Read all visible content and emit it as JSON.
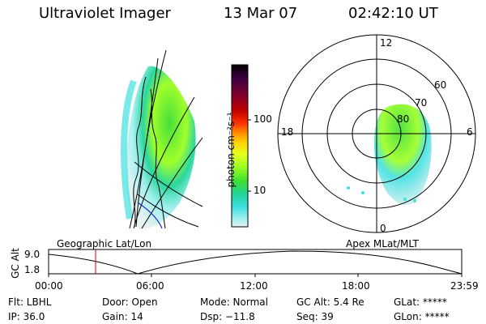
{
  "header": {
    "instrument": "Ultraviolet Imager",
    "date": "13 Mar 07",
    "time": "02:42:10 UT"
  },
  "colorbar": {
    "unit_label": "photon cm⁻²s⁻¹",
    "ticks": [
      "100",
      "10"
    ],
    "colors": [
      "#000000",
      "#3b0040",
      "#7a0030",
      "#c00000",
      "#ff3000",
      "#ff8c00",
      "#ffd200",
      "#e8ff20",
      "#9cff20",
      "#3cde30",
      "#20d49a",
      "#40e0e0",
      "#a0f0f0",
      "#e6f0f0"
    ]
  },
  "polar": {
    "mlt_labels": {
      "top": "12",
      "left": "18",
      "right": "6",
      "bottom": "0"
    },
    "lat_labels": [
      "60",
      "70",
      "80"
    ]
  },
  "altitude_plot": {
    "ylabel": "GC Alt",
    "ytick_top": "9.0",
    "ytick_bottom": "1.8",
    "left_caption": "Geographic Lat/Lon",
    "right_caption": "Apex MLat/MLT",
    "xticks": [
      "00:00",
      "06:00",
      "12:00",
      "18:00",
      "23:59"
    ]
  },
  "info": {
    "flt": "Flt: LBHL",
    "ip": "IP: 36.0",
    "door": "Door: Open",
    "gain": "Gain: 14",
    "mode": "Mode: Normal",
    "dsp": "Dsp:  −11.8",
    "gcalt": "GC Alt: 5.4 Re",
    "seq": "Seq: 39",
    "glat": "GLat: *****",
    "glon": "GLon: *****"
  }
}
